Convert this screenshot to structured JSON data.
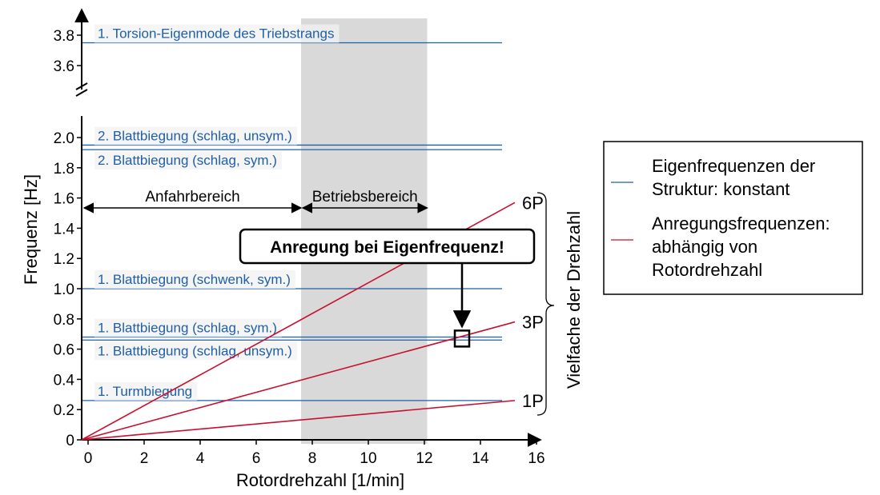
{
  "chart_data": {
    "type": "line",
    "xlabel": "Rotordrehzahl [1/min]",
    "ylabel": "Frequenz [Hz]",
    "xlim": [
      0,
      16
    ],
    "x_ticks": [
      "0",
      "2",
      "4",
      "6",
      "8",
      "10",
      "12",
      "14",
      "16"
    ],
    "y_ticks_lower": [
      "0",
      "0.2",
      "0.4",
      "0.6",
      "0.8",
      "1.0",
      "1.2",
      "1.4",
      "1.6",
      "1.8",
      "2.0"
    ],
    "y_ticks_upper": [
      "3.6",
      "3.8"
    ],
    "y_axis_break": [
      2.1,
      3.5
    ],
    "operating_range": {
      "x": [
        7.6,
        12.1
      ],
      "color": "#d9d9d9"
    },
    "ranges": [
      {
        "label": "Anfahrbereich",
        "x": [
          -0.2,
          7.6
        ]
      },
      {
        "label": "Betriebsbereich",
        "x": [
          7.6,
          12.1
        ]
      }
    ],
    "modes": [
      {
        "label": "1. Torsion-Eigenmode des Triebstrangs",
        "y": 3.75
      },
      {
        "label": "2. Blattbiegung (schlag, unsym.)",
        "y": 1.95
      },
      {
        "label": "2. Blattbiegung (schlag, sym.)",
        "y": 1.92
      },
      {
        "label": "1. Blattbiegung (schwenk, sym.)",
        "y": 1.0
      },
      {
        "label": "1. Blattbiegung (schlag, sym.)",
        "y": 0.68
      },
      {
        "label": "1. Blattbiegung (schlag, unsym.)",
        "y": 0.66
      },
      {
        "label": "1. Turmbiegung",
        "y": 0.26
      }
    ],
    "excitations": [
      {
        "label": "6P",
        "x": [
          0,
          15.2
        ],
        "y": [
          0,
          1.57
        ]
      },
      {
        "label": "3P",
        "x": [
          0,
          15.2
        ],
        "y": [
          0,
          0.78
        ]
      },
      {
        "label": "1P",
        "x": [
          0,
          15.2
        ],
        "y": [
          0,
          0.26
        ]
      }
    ],
    "multiples_label": "Vielfache der Drehzahl",
    "callout": {
      "text": "Anregung bei Eigenfrequenz!",
      "target": [
        13.5,
        0.67
      ]
    },
    "legend": [
      {
        "label_lines": [
          "Eigenfrequenzen der",
          "Struktur: konstant"
        ],
        "color": "#1f5fa8"
      },
      {
        "label_lines": [
          "Anregungsfrequenzen:",
          "abhängig von",
          "Rotordrehzahl"
        ],
        "color": "#c8102e"
      }
    ],
    "colors": {
      "mode": "#1f5fa8",
      "excitation": "#c8102e"
    }
  }
}
